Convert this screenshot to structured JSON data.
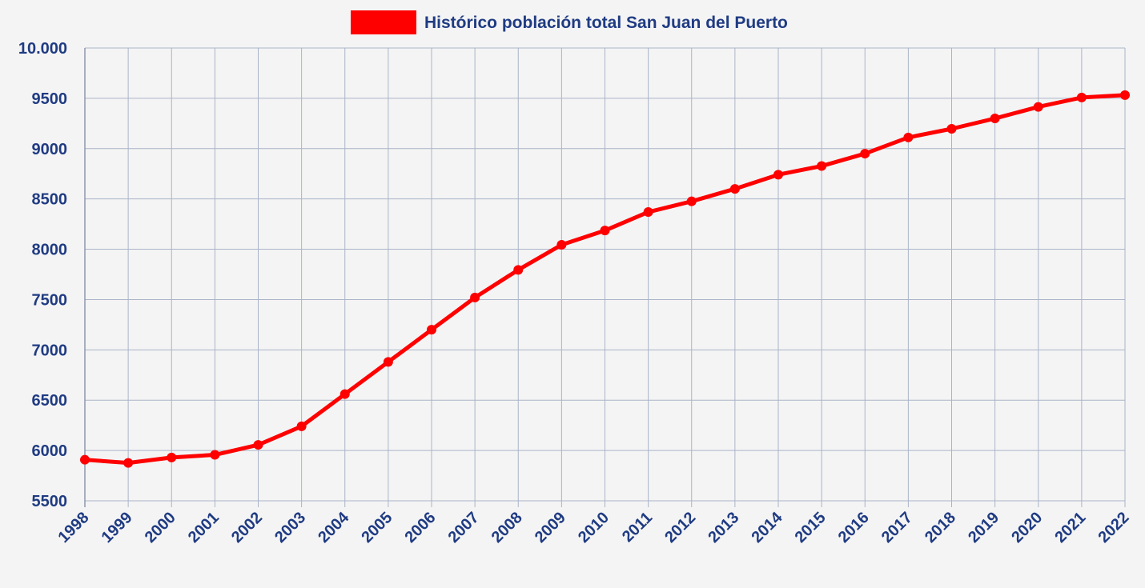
{
  "chart_data": {
    "type": "line",
    "title": "",
    "xlabel": "",
    "ylabel": "",
    "legend_position": "top-center",
    "grid": true,
    "ylim": [
      5500,
      10000
    ],
    "y_ticks": [
      "5500",
      "6000",
      "6500",
      "7000",
      "7500",
      "8000",
      "8500",
      "9000",
      "9500",
      "10.000"
    ],
    "y_tick_values": [
      5500,
      6000,
      6500,
      7000,
      7500,
      8000,
      8500,
      9000,
      9500,
      10000
    ],
    "x": [
      "1998",
      "1999",
      "2000",
      "2001",
      "2002",
      "2003",
      "2004",
      "2005",
      "2006",
      "2007",
      "2008",
      "2009",
      "2010",
      "2011",
      "2012",
      "2013",
      "2014",
      "2015",
      "2016",
      "2017",
      "2018",
      "2019",
      "2020",
      "2021",
      "2022"
    ],
    "series": [
      {
        "name": "Histórico población total San Juan del Puerto",
        "color": "#ff0000",
        "values": [
          5908,
          5877,
          5930,
          5957,
          6056,
          6240,
          6560,
          6880,
          7200,
          7520,
          7795,
          8044,
          8186,
          8370,
          8476,
          8600,
          8741,
          8827,
          8950,
          9111,
          9197,
          9300,
          9415,
          9508,
          9532
        ]
      }
    ]
  },
  "colors": {
    "background": "#f4f4f4",
    "grid": "#aab4c8",
    "axis_text": "#1f3b82",
    "series": "#ff0000"
  }
}
